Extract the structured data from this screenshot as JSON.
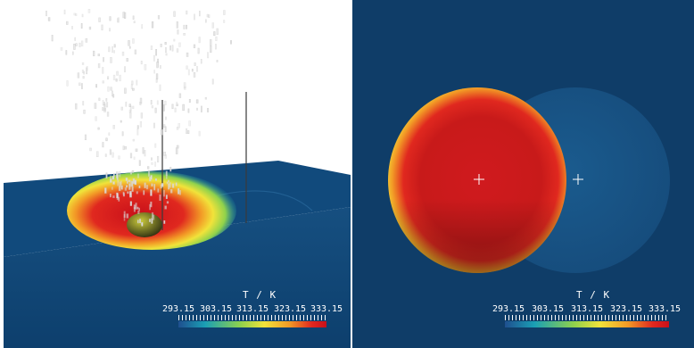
{
  "colorbar": {
    "title": "T / K",
    "ticks": [
      "293.15",
      "303.15",
      "313.15",
      "323.15",
      "333.15"
    ],
    "min": 293.15,
    "max": 333.15,
    "colormap": [
      "#1f4f8f",
      "#1a9fb5",
      "#8fd24c",
      "#f1e33a",
      "#f29a26",
      "#e0281f",
      "#c8101a"
    ]
  },
  "colors": {
    "background_3d": "#ffffff",
    "background_top": "#0f3d68",
    "fluid_surface": "#0e4a7c",
    "hot_region": "#d81f1f",
    "marker": "#ffffff"
  },
  "icons": [
    "crosshair-marker",
    "heated-sphere"
  ]
}
